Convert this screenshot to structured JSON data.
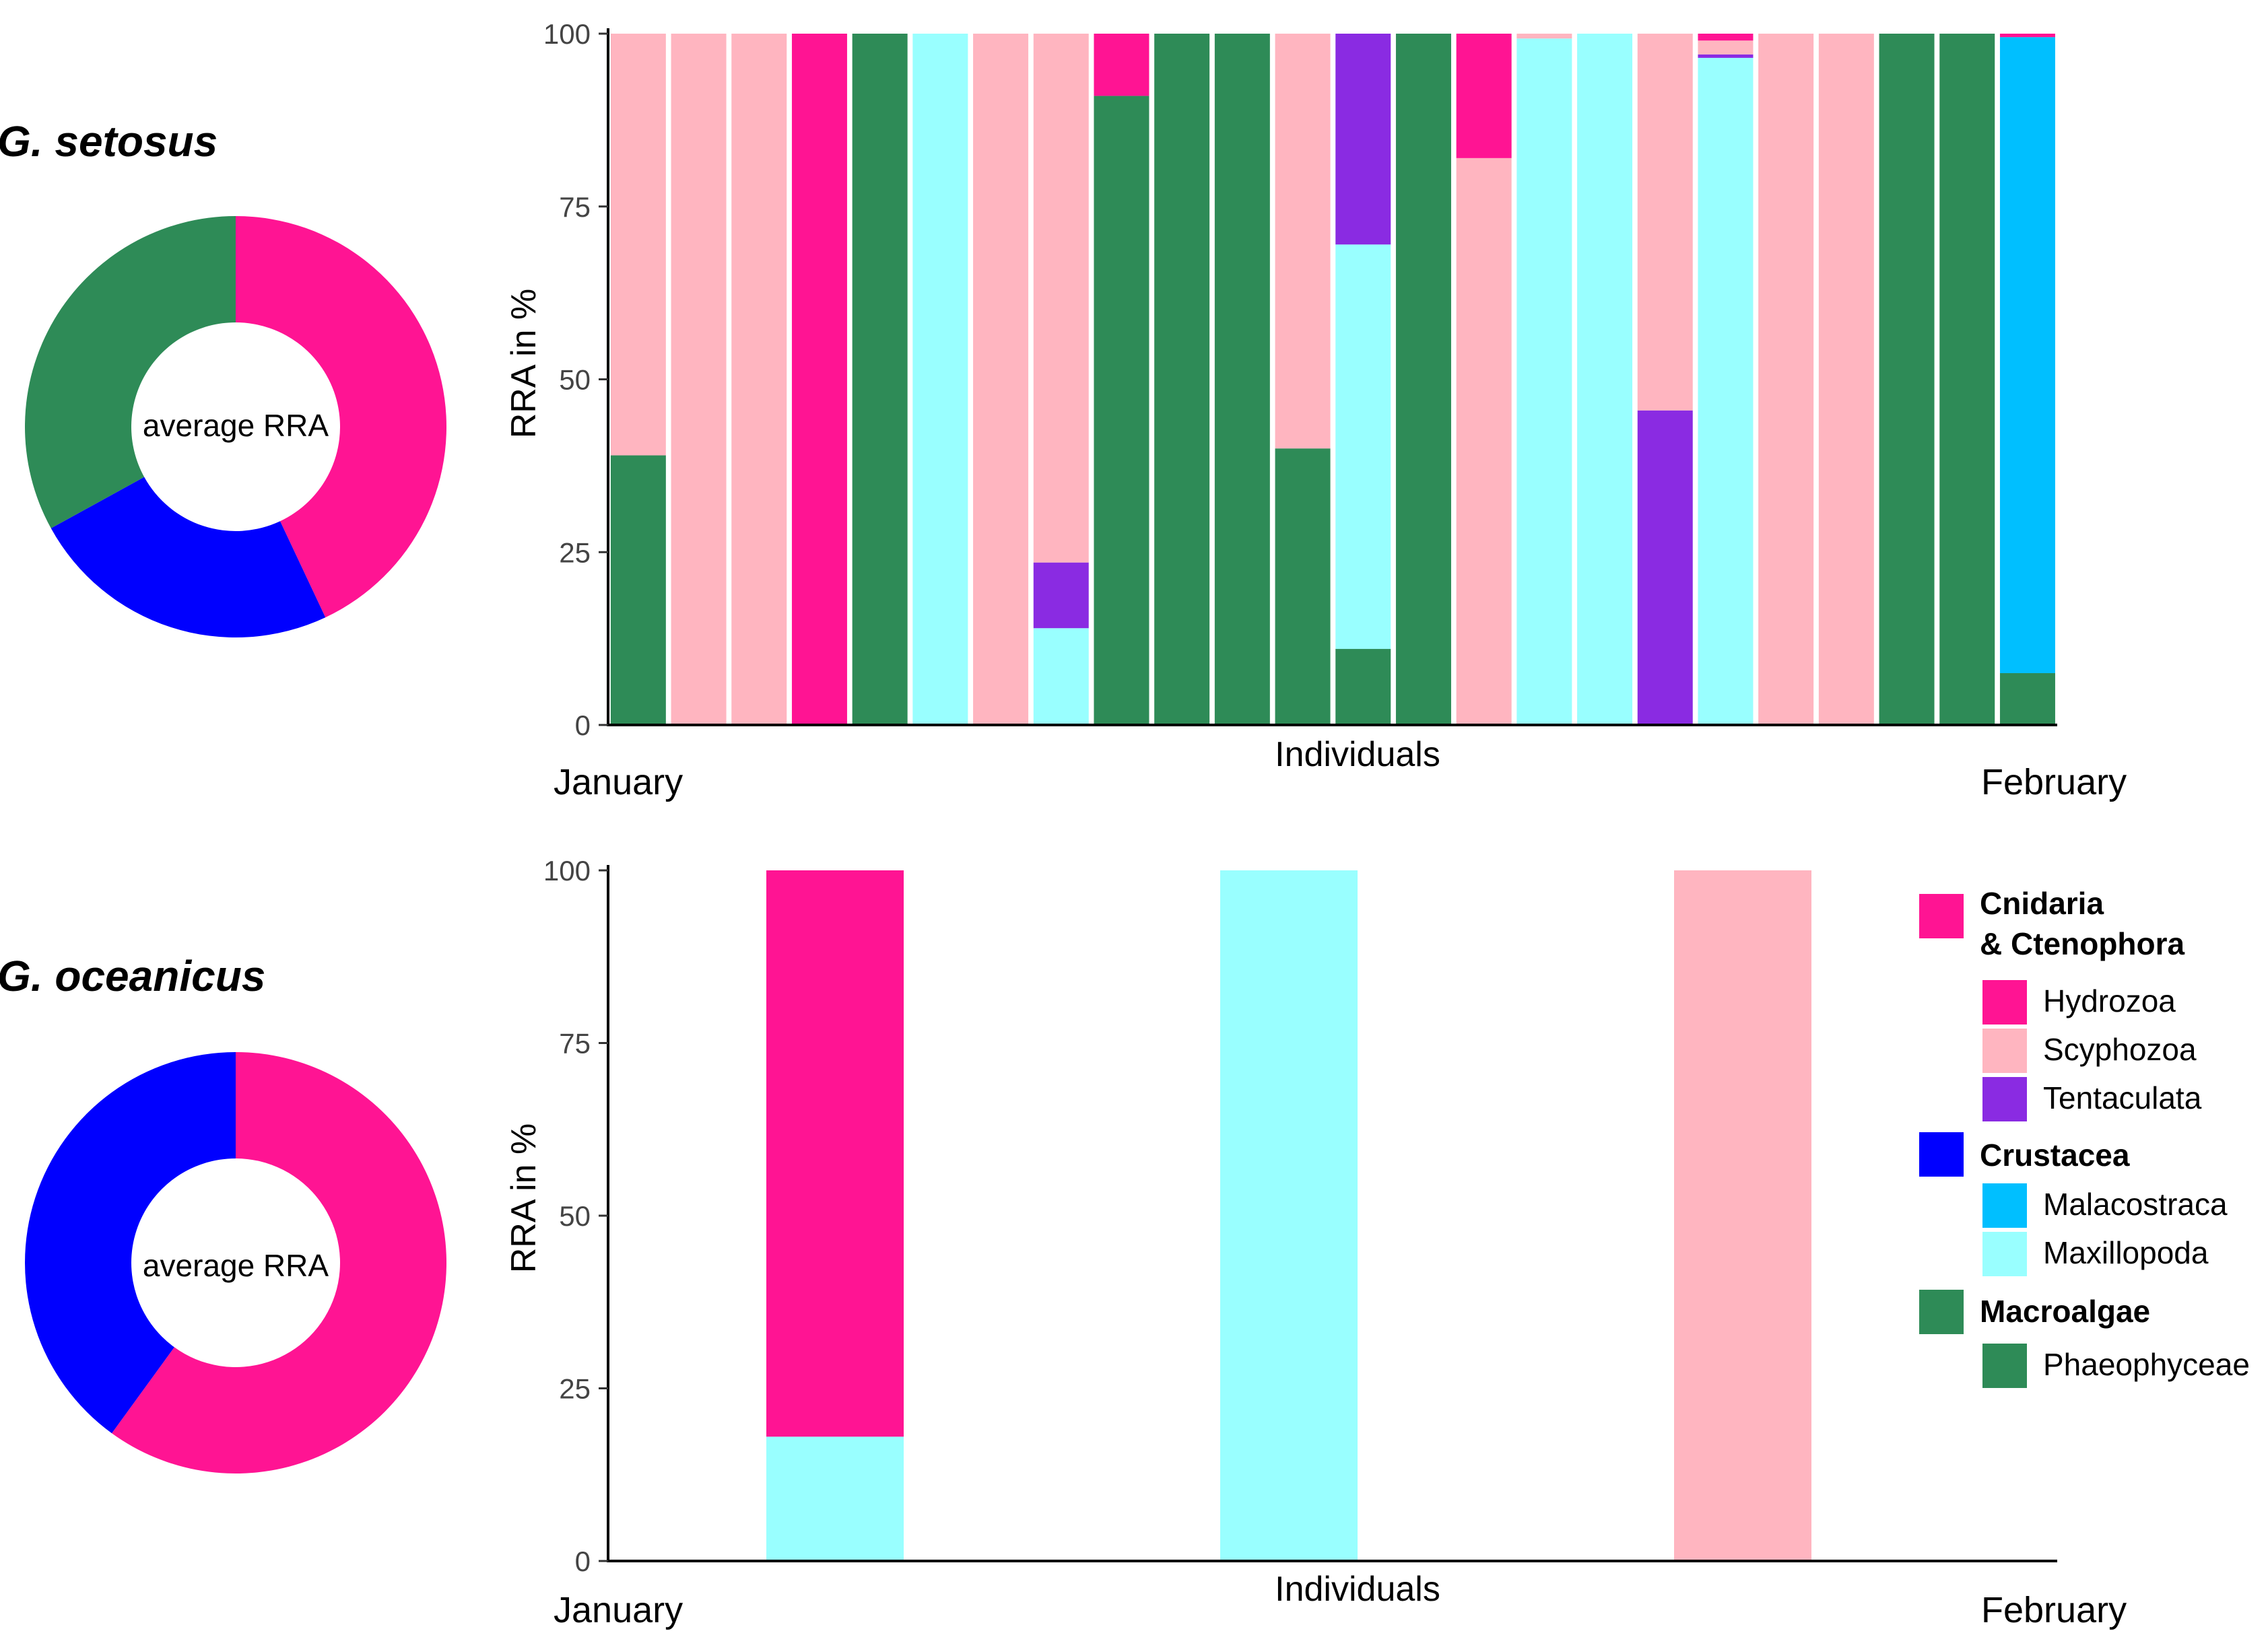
{
  "colors": {
    "Hydrozoa": "#FF1493",
    "Scyphozoa": "#FFB5C0",
    "Tentaculata": "#8A2BE2",
    "Malacostraca": "#00BFFF",
    "Maxillopoda": "#99FFFF",
    "Phaeophyceae": "#2E8B57",
    "Cnidaria & Ctenophora": "#FF1493",
    "Crustacea": "#0000FF",
    "Macroalgae": "#2E8B57"
  },
  "chart_data": [
    {
      "type": "pie",
      "variant": "donut",
      "title": "G. setosus",
      "center_label": "average RRA",
      "slices": [
        {
          "label": "Cnidaria & Ctenophora",
          "value": 43
        },
        {
          "label": "Crustacea",
          "value": 24
        },
        {
          "label": "Macroalgae",
          "value": 33
        }
      ]
    },
    {
      "type": "bar",
      "stacked": true,
      "title": "G. setosus",
      "xlabel": "Individuals",
      "ylabel": "RRA in %",
      "ylim": [
        0,
        100
      ],
      "yticks": [
        0,
        25,
        50,
        75,
        100
      ],
      "x_start_label": "January",
      "x_end_label": "February",
      "stack_order": [
        "Phaeophyceae",
        "Maxillopoda",
        "Tentaculata",
        "Malacostraca",
        "Scyphozoa",
        "Hydrozoa"
      ],
      "bars": [
        {
          "Phaeophyceae": 39,
          "Scyphozoa": 61
        },
        {
          "Scyphozoa": 100
        },
        {
          "Scyphozoa": 100
        },
        {
          "Hydrozoa": 100
        },
        {
          "Phaeophyceae": 100
        },
        {
          "Maxillopoda": 100
        },
        {
          "Scyphozoa": 100
        },
        {
          "Maxillopoda": 14,
          "Tentaculata": 9.5,
          "Scyphozoa": 76.5
        },
        {
          "Phaeophyceae": 91,
          "Hydrozoa": 9
        },
        {
          "Phaeophyceae": 100
        },
        {
          "Phaeophyceae": 100
        },
        {
          "Phaeophyceae": 40,
          "Scyphozoa": 60
        },
        {
          "Phaeophyceae": 11,
          "Maxillopoda": 58.5,
          "Tentaculata": 30.5
        },
        {
          "Phaeophyceae": 100
        },
        {
          "Scyphozoa": 82,
          "Hydrozoa": 18
        },
        {
          "Maxillopoda": 99.3,
          "Scyphozoa": 0.7
        },
        {
          "Maxillopoda": 100
        },
        {
          "Tentaculata": 45.5,
          "Scyphozoa": 54.5
        },
        {
          "Maxillopoda": 96.5,
          "Tentaculata": 0.5,
          "Scyphozoa": 2,
          "Hydrozoa": 1
        },
        {
          "Scyphozoa": 100
        },
        {
          "Scyphozoa": 100
        },
        {
          "Phaeophyceae": 100
        },
        {
          "Phaeophyceae": 100
        },
        {
          "Phaeophyceae": 7.5,
          "Malacostraca": 92,
          "Hydrozoa": 0.5
        }
      ]
    },
    {
      "type": "pie",
      "variant": "donut",
      "title": "G. oceanicus",
      "center_label": "average RRA",
      "slices": [
        {
          "label": "Cnidaria & Ctenophora",
          "value": 60
        },
        {
          "label": "Crustacea",
          "value": 40
        }
      ]
    },
    {
      "type": "bar",
      "stacked": true,
      "title": "G. oceanicus",
      "xlabel": "Individuals",
      "ylabel": "RRA in %",
      "ylim": [
        0,
        100
      ],
      "yticks": [
        0,
        25,
        50,
        75,
        100
      ],
      "x_start_label": "January",
      "x_end_label": "February",
      "stack_order": [
        "Phaeophyceae",
        "Maxillopoda",
        "Tentaculata",
        "Malacostraca",
        "Scyphozoa",
        "Hydrozoa"
      ],
      "bars": [
        {
          "Maxillopoda": 18,
          "Hydrozoa": 82
        },
        {
          "Maxillopoda": 100
        },
        {
          "Scyphozoa": 100
        }
      ]
    }
  ],
  "legend": {
    "groups": [
      {
        "name": "Cnidaria & Ctenophora",
        "label_lines": [
          "Cnidaria",
          "& Ctenophora"
        ],
        "items": [
          "Hydrozoa",
          "Scyphozoa",
          "Tentaculata"
        ]
      },
      {
        "name": "Crustacea",
        "label_lines": [
          "Crustacea"
        ],
        "items": [
          "Malacostraca",
          "Maxillopoda"
        ]
      },
      {
        "name": "Macroalgae",
        "label_lines": [
          "Macroalgae"
        ],
        "items": [
          "Phaeophyceae"
        ]
      }
    ]
  }
}
